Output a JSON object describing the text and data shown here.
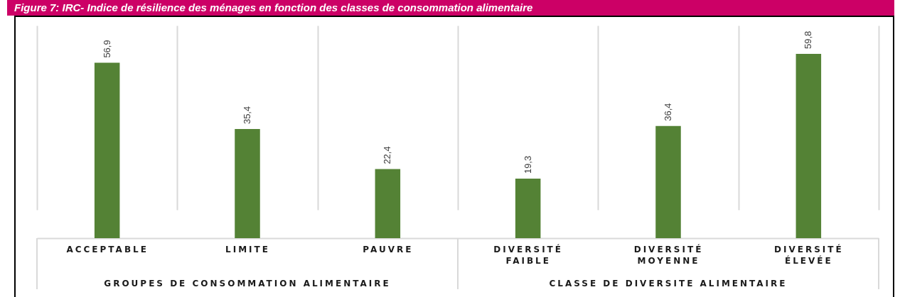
{
  "chart_data": {
    "type": "bar",
    "title": "Figure 7: IRC- Indice de résilience des ménages en fonction des classes de consommation alimentaire",
    "categories": [
      "ACCEPTABLE",
      "LIMITE",
      "PAUVRE",
      "DIVERSITÉ FAIBLE",
      "DIVERSITÉ MOYENNE",
      "DIVERSITÉ ÉLEVÉE"
    ],
    "values": [
      56.9,
      35.4,
      22.4,
      19.3,
      36.4,
      59.8
    ],
    "value_labels": [
      "56,9",
      "35,4",
      "22,4",
      "19,3",
      "36,4",
      "59,8"
    ],
    "color": "#548235",
    "grid": "x",
    "annotations": [
      "GROUPES DE CONSOMMATION ALIMENTAIRE",
      "CLASSE DE DIVERSITE ALIMENTAIRE"
    ]
  }
}
